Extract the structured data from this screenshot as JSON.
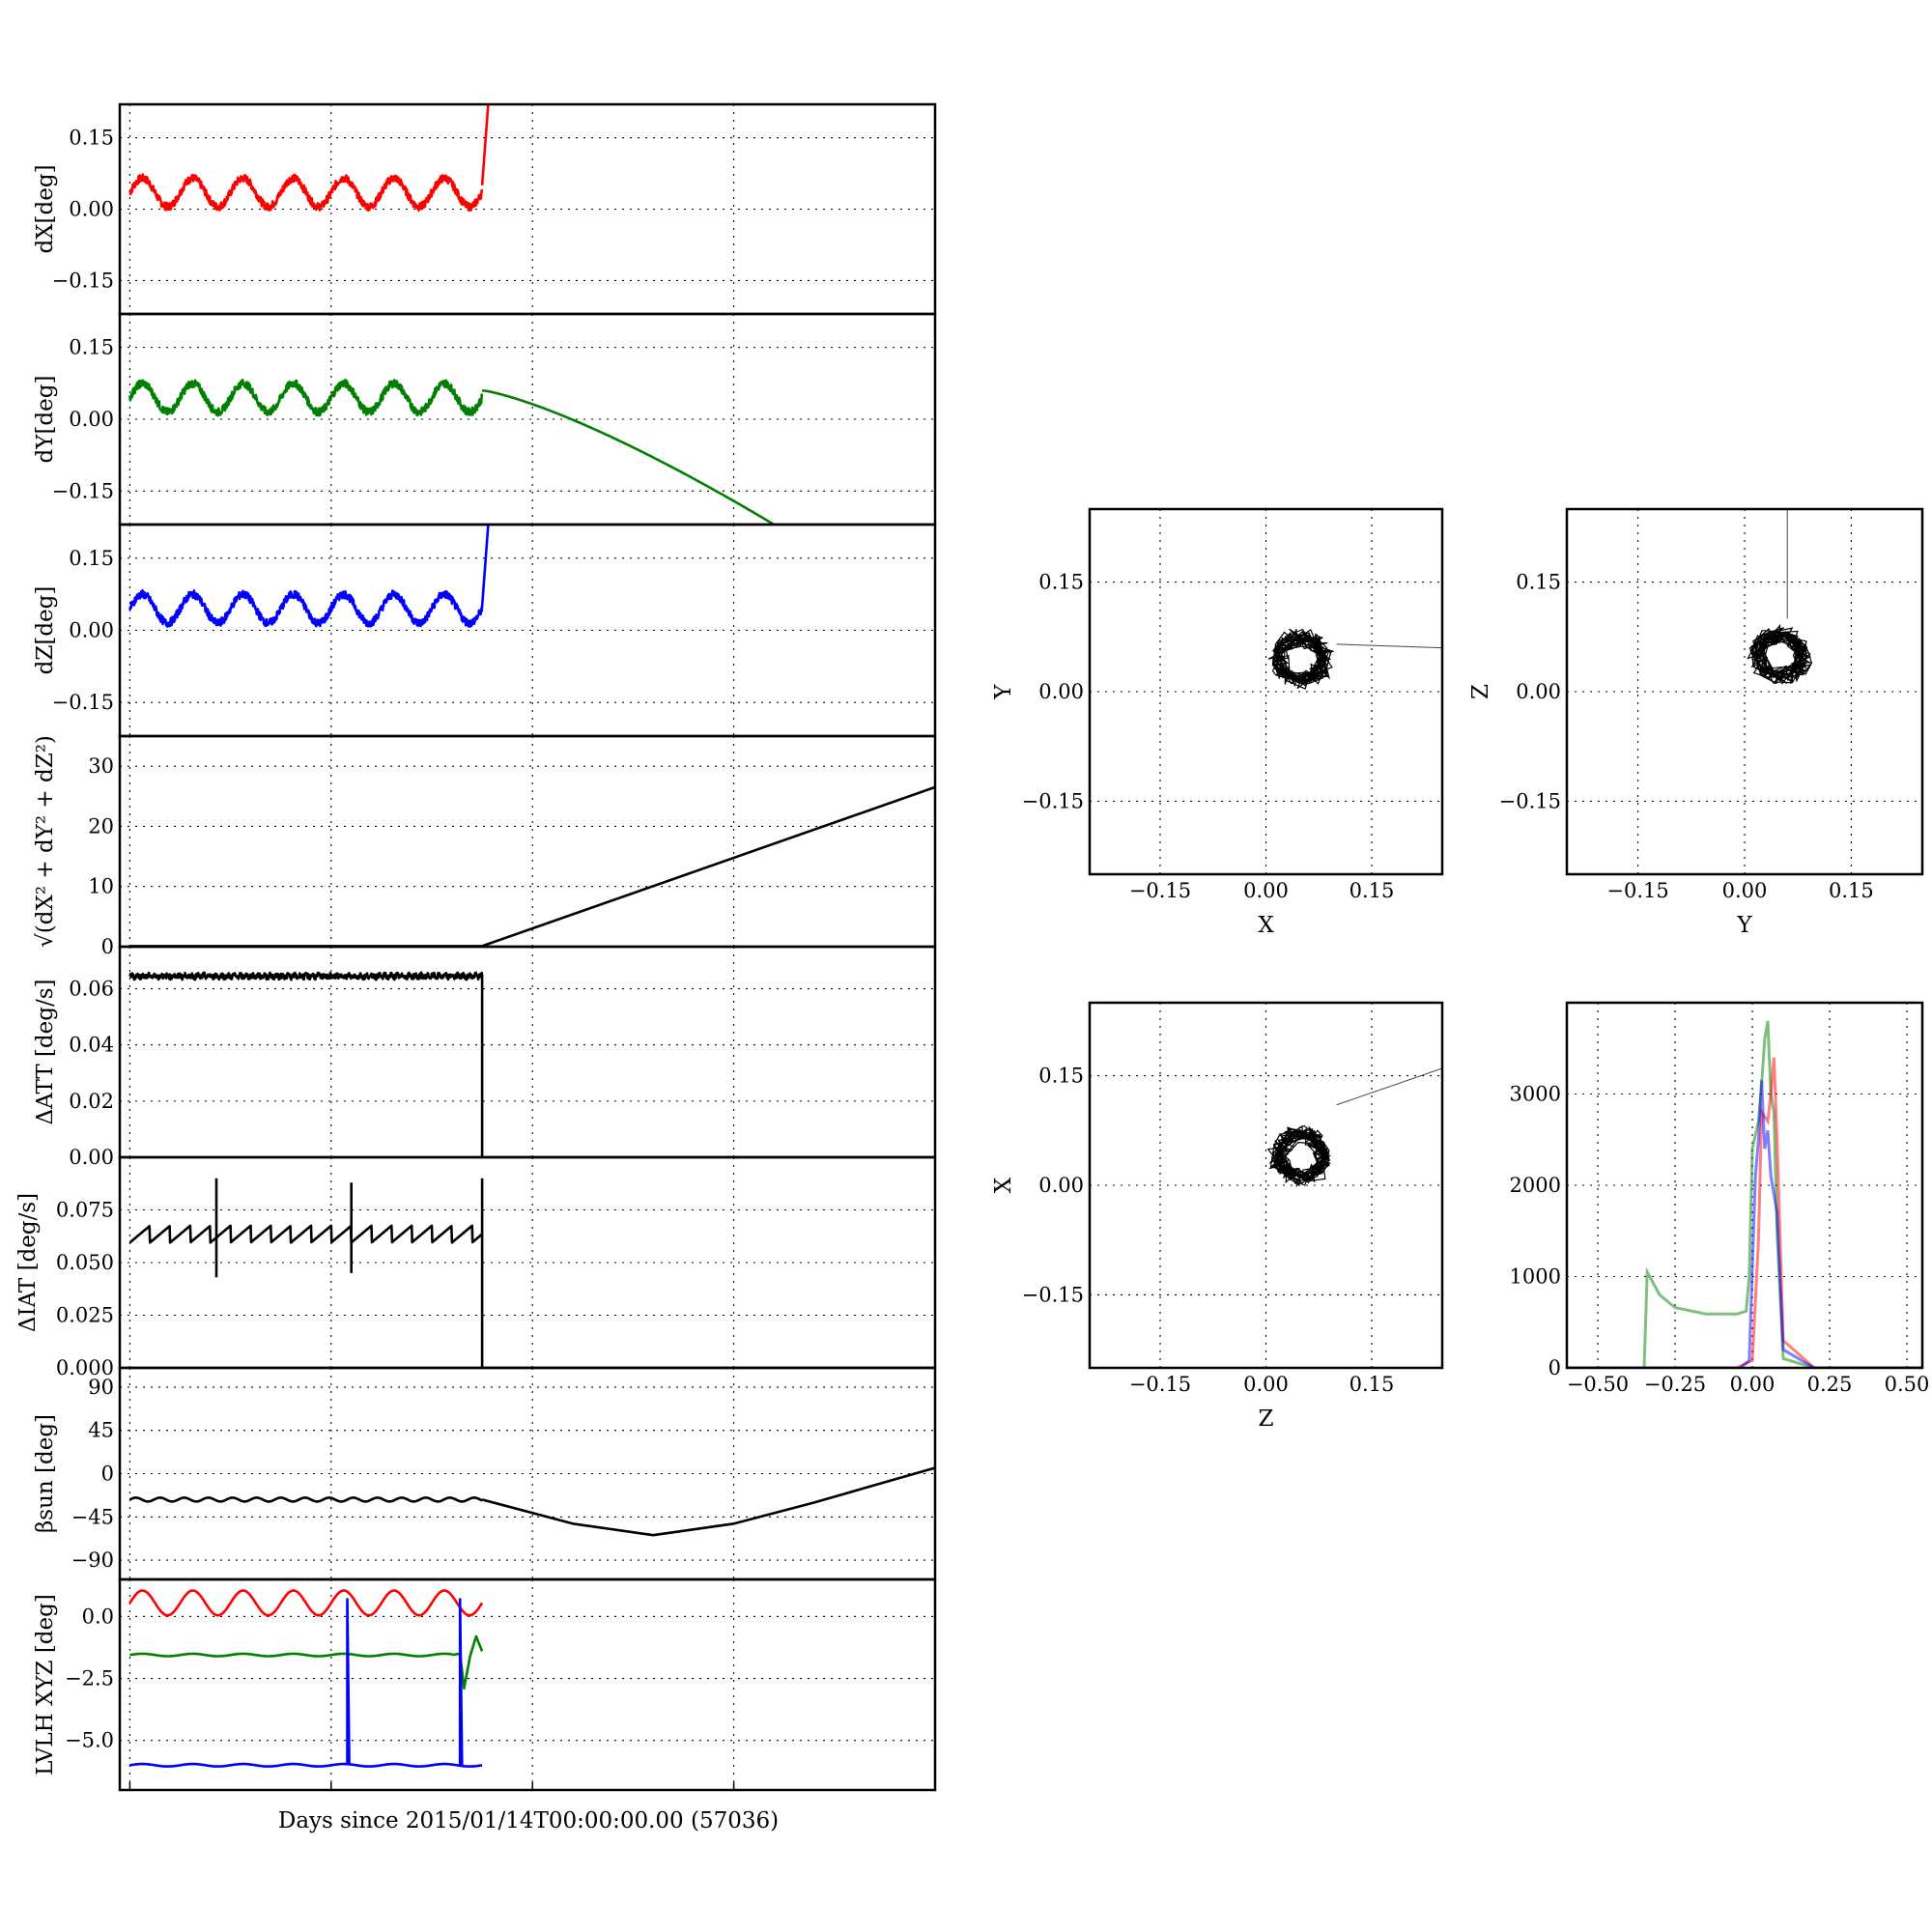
{
  "colors": {
    "x": "#ff0000",
    "y": "#008000",
    "z": "#0000ff",
    "k": "#000000"
  },
  "xlabel": "Days since 2015/01/14T00:00:00.00 (57036)",
  "chart_data": [
    {
      "id": "dx",
      "type": "line",
      "ylabel": "dX[deg]",
      "ylim": [
        -0.22,
        0.22
      ],
      "yticks": [
        "0.15",
        "0.00",
        "−0.15"
      ],
      "yvals": [
        0.15,
        0.0,
        -0.15
      ],
      "xlim": [
        -0.05,
        4.0
      ],
      "grid": true,
      "color": "x",
      "series": [
        {
          "segments": [
            {
              "kind": "wave",
              "x0": 0,
              "x1": 1.75,
              "base": 0.035,
              "amp": 0.03,
              "period": 0.25,
              "noise": 0.008
            },
            {
              "kind": "line",
              "points": [
                [
                  1.75,
                  0.05
                ],
                [
                  1.78,
                  0.22
                ]
              ]
            }
          ]
        }
      ]
    },
    {
      "id": "dy",
      "type": "line",
      "ylabel": "dY[deg]",
      "ylim": [
        -0.22,
        0.22
      ],
      "yticks": [
        "0.15",
        "0.00",
        "−0.15"
      ],
      "yvals": [
        0.15,
        0.0,
        -0.15
      ],
      "xlim": [
        -0.05,
        4.0
      ],
      "grid": true,
      "color": "y",
      "series": [
        {
          "segments": [
            {
              "kind": "wave",
              "x0": 0,
              "x1": 1.75,
              "base": 0.045,
              "amp": 0.03,
              "period": 0.25,
              "noise": 0.008
            },
            {
              "kind": "curve",
              "x0": 1.75,
              "x1": 3.2,
              "y0": 0.06,
              "y1": -0.22
            }
          ]
        }
      ]
    },
    {
      "id": "dz",
      "type": "line",
      "ylabel": "dZ[deg]",
      "ylim": [
        -0.22,
        0.22
      ],
      "yticks": [
        "0.15",
        "0.00",
        "−0.15"
      ],
      "yvals": [
        0.15,
        0.0,
        -0.15
      ],
      "xlim": [
        -0.05,
        4.0
      ],
      "grid": true,
      "color": "z",
      "series": [
        {
          "segments": [
            {
              "kind": "wave",
              "x0": 0,
              "x1": 1.75,
              "base": 0.045,
              "amp": 0.03,
              "period": 0.25,
              "noise": 0.008
            },
            {
              "kind": "line",
              "points": [
                [
                  1.75,
                  0.05
                ],
                [
                  1.78,
                  0.22
                ]
              ]
            }
          ]
        }
      ]
    },
    {
      "id": "mag",
      "type": "line",
      "ylabel": "√(dX² + dY² + dZ²)",
      "ylim": [
        0,
        35
      ],
      "yticks": [
        "30",
        "20",
        "10",
        "0"
      ],
      "yvals": [
        30,
        20,
        10,
        0
      ],
      "xlim": [
        -0.05,
        4.0
      ],
      "grid": true,
      "color": "k",
      "series": [
        {
          "segments": [
            {
              "kind": "line",
              "points": [
                [
                  0,
                  0.1
                ],
                [
                  1.75,
                  0.1
                ],
                [
                  4.0,
                  26.5
                ]
              ]
            }
          ]
        }
      ]
    },
    {
      "id": "datt",
      "type": "line",
      "ylabel": "ΔATT [deg/s]",
      "ylim": [
        0,
        0.075
      ],
      "yticks": [
        "0.06",
        "0.04",
        "0.02",
        "0.00"
      ],
      "yvals": [
        0.06,
        0.04,
        0.02,
        0.0
      ],
      "xlim": [
        -0.05,
        4.0
      ],
      "grid": true,
      "color": "k",
      "series": [
        {
          "segments": [
            {
              "kind": "wave",
              "x0": 0,
              "x1": 1.75,
              "base": 0.0645,
              "amp": 0.0004,
              "period": 0.03,
              "noise": 0.0009
            },
            {
              "kind": "line",
              "points": [
                [
                  1.75,
                  0.065
                ],
                [
                  1.75,
                  0.0
                ],
                [
                  4.0,
                  0.0
                ]
              ]
            }
          ]
        }
      ]
    },
    {
      "id": "diat",
      "type": "line",
      "ylabel": "ΔIAT [deg/s]",
      "ylim": [
        0,
        0.1
      ],
      "yticks": [
        "0.075",
        "0.050",
        "0.025",
        "0.000"
      ],
      "yvals": [
        0.075,
        0.05,
        0.025,
        0.0
      ],
      "xlim": [
        -0.05,
        4.0
      ],
      "grid": true,
      "color": "k",
      "series": [
        {
          "segments": [
            {
              "kind": "saw",
              "x0": 0,
              "x1": 1.75,
              "base": 0.0635,
              "amp": 0.004,
              "period": 0.1
            },
            {
              "kind": "line",
              "points": [
                [
                  0.43,
                  0.09
                ],
                [
                  0.43,
                  0.043
                ]
              ]
            },
            {
              "kind": "line",
              "points": [
                [
                  1.1,
                  0.088
                ],
                [
                  1.1,
                  0.045
                ]
              ]
            },
            {
              "kind": "line",
              "points": [
                [
                  1.75,
                  0.09
                ],
                [
                  1.75,
                  0.0
                ],
                [
                  4.0,
                  0.0
                ]
              ]
            }
          ]
        }
      ]
    },
    {
      "id": "beta",
      "type": "line",
      "ylabel": "βsun [deg]",
      "ylim": [
        -110,
        110
      ],
      "yticks": [
        "90",
        "45",
        "0",
        "−45",
        "−90"
      ],
      "yvals": [
        90,
        45,
        0,
        -45,
        -90
      ],
      "xlim": [
        -0.05,
        4.0
      ],
      "grid": true,
      "color": "k",
      "series": [
        {
          "segments": [
            {
              "kind": "wave",
              "x0": 0,
              "x1": 1.75,
              "base": -27,
              "amp": 2,
              "period": 0.12,
              "noise": 0
            },
            {
              "kind": "line",
              "points": [
                [
                  1.75,
                  -27
                ],
                [
                  2.2,
                  -52
                ],
                [
                  2.6,
                  -64
                ],
                [
                  3.0,
                  -52
                ],
                [
                  3.4,
                  -30
                ],
                [
                  3.7,
                  -12
                ],
                [
                  4.0,
                  6
                ]
              ]
            }
          ]
        }
      ]
    },
    {
      "id": "lvlh",
      "type": "line",
      "ylabel": "LVLH XYZ [deg]",
      "ylim": [
        -7.0,
        1.5
      ],
      "yticks": [
        "0.0",
        "−2.5",
        "−5.0"
      ],
      "yvals": [
        0.0,
        -2.5,
        -5.0
      ],
      "xlim": [
        -0.05,
        4.0
      ],
      "grid": true,
      "series": [
        {
          "color": "x",
          "segments": [
            {
              "kind": "wave",
              "x0": 0,
              "x1": 1.75,
              "base": 0.55,
              "amp": 0.5,
              "period": 0.25,
              "noise": 0
            }
          ]
        },
        {
          "color": "y",
          "segments": [
            {
              "kind": "wave",
              "x0": 0,
              "x1": 1.6,
              "base": -1.55,
              "amp": 0.05,
              "period": 0.25,
              "noise": 0
            },
            {
              "kind": "line",
              "points": [
                [
                  1.6,
                  -1.55
                ],
                [
                  1.64,
                  -1.5
                ],
                [
                  1.66,
                  -2.9
                ],
                [
                  1.69,
                  -1.6
                ],
                [
                  1.72,
                  -0.8
                ],
                [
                  1.75,
                  -1.4
                ]
              ]
            }
          ]
        },
        {
          "color": "z",
          "segments": [
            {
              "kind": "wave",
              "x0": 0,
              "x1": 1.75,
              "base": -6.0,
              "amp": 0.05,
              "period": 0.25,
              "noise": 0
            },
            {
              "kind": "line",
              "points": [
                [
                  1.08,
                  -6.0
                ],
                [
                  1.08,
                  0.7
                ],
                [
                  1.09,
                  -6.0
                ]
              ]
            },
            {
              "kind": "line",
              "points": [
                [
                  1.64,
                  -6.0
                ],
                [
                  1.64,
                  0.7
                ],
                [
                  1.65,
                  -6.0
                ]
              ]
            }
          ]
        }
      ]
    },
    {
      "id": "xy",
      "type": "scatter",
      "xlabel": "X",
      "ylabel": "Y",
      "xlim": [
        -0.25,
        0.25
      ],
      "ylim": [
        -0.25,
        0.25
      ],
      "xticks": [
        "−0.15",
        "0.00",
        "0.15"
      ],
      "yticks": [
        "0.15",
        "0.00",
        "−0.15"
      ],
      "vals": [
        0.15,
        0.0,
        -0.15
      ],
      "grid": true,
      "color": "k",
      "cluster": {
        "cx": 0.05,
        "cy": 0.045,
        "rx": 0.04,
        "ry": 0.04
      },
      "tail": [
        [
          0.1,
          0.065
        ],
        [
          0.25,
          0.06
        ]
      ]
    },
    {
      "id": "yz",
      "type": "scatter",
      "xlabel": "Y",
      "ylabel": "Z",
      "xlim": [
        -0.25,
        0.25
      ],
      "ylim": [
        -0.25,
        0.25
      ],
      "xticks": [
        "−0.15",
        "0.00",
        "0.15"
      ],
      "yticks": [
        "0.15",
        "0.00",
        "−0.15"
      ],
      "vals": [
        0.15,
        0.0,
        -0.15
      ],
      "grid": true,
      "color": "k",
      "cluster": {
        "cx": 0.05,
        "cy": 0.05,
        "rx": 0.04,
        "ry": 0.04
      },
      "tail": [
        [
          0.06,
          0.1
        ],
        [
          0.06,
          0.25
        ]
      ]
    },
    {
      "id": "zx",
      "type": "scatter",
      "xlabel": "Z",
      "ylabel": "X",
      "xlim": [
        -0.25,
        0.25
      ],
      "ylim": [
        -0.25,
        0.25
      ],
      "xticks": [
        "−0.15",
        "0.00",
        "0.15"
      ],
      "yticks": [
        "0.15",
        "0.00",
        "−0.15"
      ],
      "vals": [
        0.15,
        0.0,
        -0.15
      ],
      "grid": true,
      "color": "k",
      "cluster": {
        "cx": 0.05,
        "cy": 0.04,
        "rx": 0.04,
        "ry": 0.04
      },
      "tail": [
        [
          0.1,
          0.11
        ],
        [
          0.25,
          0.16
        ]
      ]
    },
    {
      "id": "hist",
      "type": "histogram",
      "xlim": [
        -0.6,
        0.55
      ],
      "ylim": [
        0,
        4000
      ],
      "xticks": [
        "−0.50",
        "−0.25",
        "0.00",
        "0.25",
        "0.50"
      ],
      "xvals": [
        -0.5,
        -0.25,
        0.0,
        0.25,
        0.5
      ],
      "yticks": [
        "3000",
        "2000",
        "1000",
        "0"
      ],
      "yvals": [
        3000,
        2000,
        1000,
        0
      ],
      "grid": true,
      "series": [
        {
          "color": "y",
          "points": [
            [
              -0.6,
              0
            ],
            [
              -0.35,
              0
            ],
            [
              -0.34,
              1050
            ],
            [
              -0.3,
              800
            ],
            [
              -0.25,
              660
            ],
            [
              -0.15,
              590
            ],
            [
              -0.05,
              590
            ],
            [
              -0.02,
              620
            ],
            [
              -0.01,
              1000
            ],
            [
              0.0,
              2400
            ],
            [
              0.02,
              2700
            ],
            [
              0.03,
              3100
            ],
            [
              0.04,
              3600
            ],
            [
              0.05,
              3800
            ],
            [
              0.06,
              3000
            ],
            [
              0.07,
              2800
            ],
            [
              0.08,
              1500
            ],
            [
              0.1,
              100
            ],
            [
              0.2,
              0
            ],
            [
              0.55,
              0
            ]
          ]
        },
        {
          "color": "x",
          "points": [
            [
              -0.6,
              0
            ],
            [
              -0.05,
              0
            ],
            [
              0.0,
              80
            ],
            [
              0.02,
              1400
            ],
            [
              0.03,
              2800
            ],
            [
              0.05,
              2700
            ],
            [
              0.06,
              3000
            ],
            [
              0.07,
              3400
            ],
            [
              0.08,
              2500
            ],
            [
              0.1,
              300
            ],
            [
              0.2,
              0
            ],
            [
              0.55,
              0
            ]
          ]
        },
        {
          "color": "z",
          "points": [
            [
              -0.6,
              0
            ],
            [
              -0.04,
              0
            ],
            [
              -0.01,
              80
            ],
            [
              0.01,
              2100
            ],
            [
              0.02,
              2500
            ],
            [
              0.03,
              3150
            ],
            [
              0.04,
              2400
            ],
            [
              0.05,
              2600
            ],
            [
              0.06,
              2100
            ],
            [
              0.08,
              1700
            ],
            [
              0.1,
              200
            ],
            [
              0.2,
              0
            ],
            [
              0.55,
              0
            ]
          ]
        }
      ]
    }
  ]
}
